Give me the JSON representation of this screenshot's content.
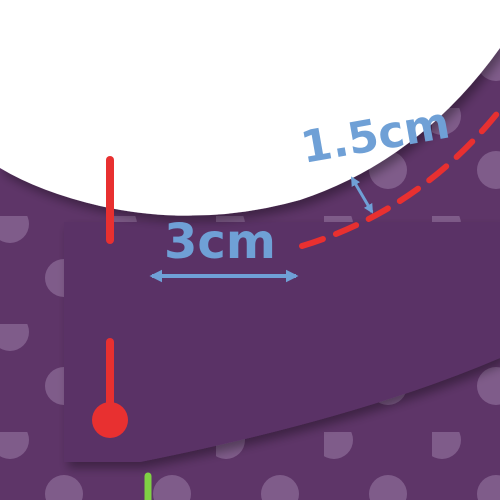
{
  "diagram": {
    "labels": {
      "seam_allowance": "1.5cm",
      "hem_width": "3cm"
    },
    "colors": {
      "fabric_back": "#5e3568",
      "fabric_front": "#5a3366",
      "dots": "#9a7ca6",
      "cutting_line": "#e83030",
      "measurement": "#6fa0d6",
      "guide_line": "#7fd044",
      "neck_opening": "#ffffff"
    }
  }
}
